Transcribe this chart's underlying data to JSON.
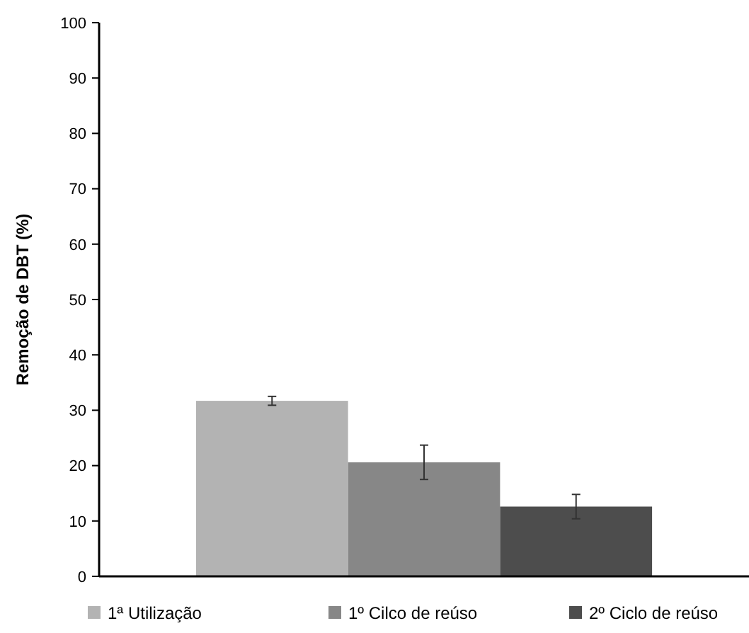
{
  "chart_data": {
    "type": "bar",
    "ylabel": "Remoção de DBT (%)",
    "categories": [
      null
    ],
    "series": [
      {
        "name": "1ª Utilização",
        "color": "#b3b3b3",
        "values": [
          31.7
        ],
        "errors": [
          0.8
        ]
      },
      {
        "name": "1º Cilco de reúso",
        "color": "#878787",
        "values": [
          20.6
        ],
        "errors": [
          3.1
        ]
      },
      {
        "name": "2º Ciclo de reúso",
        "color": "#4d4d4d",
        "values": [
          12.6
        ],
        "errors": [
          2.2
        ]
      }
    ],
    "ylim": [
      0,
      100
    ],
    "yticks": [
      0,
      10,
      20,
      30,
      40,
      50,
      60,
      70,
      80,
      90,
      100
    ],
    "grid": false,
    "legend": "bottom"
  }
}
